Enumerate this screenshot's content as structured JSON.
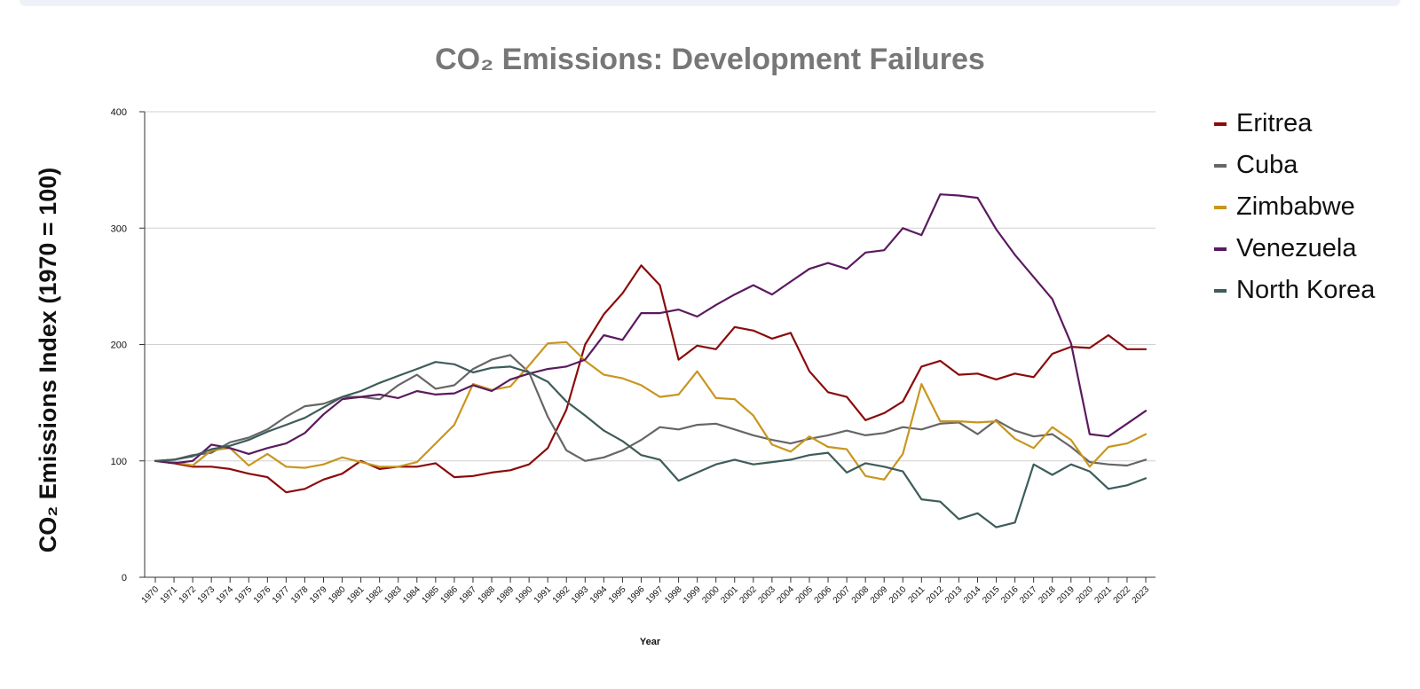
{
  "chart_data": {
    "type": "line",
    "title": "CO₂ Emissions: Development Failures",
    "xlabel": "Year",
    "ylabel": "CO₂ Emissions Index (1970 = 100)",
    "ylim": [
      0,
      400
    ],
    "yticks": [
      "0",
      "100",
      "200",
      "300",
      "400"
    ],
    "grid": true,
    "legend_position": "right",
    "x": [
      "1970",
      "1971",
      "1972",
      "1973",
      "1974",
      "1975",
      "1976",
      "1977",
      "1978",
      "1979",
      "1980",
      "1981",
      "1982",
      "1983",
      "1984",
      "1985",
      "1986",
      "1987",
      "1988",
      "1989",
      "1990",
      "1991",
      "1992",
      "1993",
      "1994",
      "1995",
      "1996",
      "1997",
      "1998",
      "1999",
      "2000",
      "2001",
      "2002",
      "2003",
      "2004",
      "2005",
      "2006",
      "2007",
      "2008",
      "2009",
      "2010",
      "2011",
      "2012",
      "2013",
      "2014",
      "2015",
      "2016",
      "2017",
      "2018",
      "2019",
      "2020",
      "2021",
      "2022",
      "2023"
    ],
    "series": [
      {
        "name": "Eritrea",
        "color": "#8b0a0a",
        "values": [
          100,
          98,
          95,
          95,
          93,
          89,
          86,
          73,
          76,
          84,
          89,
          100,
          93,
          95,
          95,
          98,
          86,
          87,
          90,
          92,
          97,
          111,
          144,
          200,
          226,
          244,
          268,
          251,
          187,
          199,
          196,
          215,
          212,
          205,
          210,
          177,
          159,
          155,
          135,
          141,
          151,
          181,
          186,
          174,
          175,
          170,
          175,
          172,
          192,
          198,
          197,
          208,
          196,
          196
        ]
      },
      {
        "name": "Cuba",
        "color": "#666666",
        "values": [
          100,
          101,
          105,
          107,
          116,
          120,
          127,
          138,
          147,
          149,
          155,
          155,
          153,
          165,
          174,
          162,
          165,
          179,
          187,
          191,
          176,
          138,
          109,
          100,
          103,
          109,
          118,
          129,
          127,
          131,
          132,
          127,
          122,
          118,
          115,
          119,
          122,
          126,
          122,
          124,
          129,
          127,
          132,
          133,
          123,
          135,
          126,
          121,
          123,
          112,
          99,
          97,
          96,
          101
        ]
      },
      {
        "name": "Zimbabwe",
        "color": "#c8961e",
        "values": [
          100,
          99,
          96,
          109,
          111,
          96,
          106,
          95,
          94,
          97,
          103,
          99,
          95,
          95,
          99,
          115,
          131,
          166,
          161,
          164,
          182,
          201,
          202,
          186,
          174,
          171,
          165,
          155,
          157,
          177,
          154,
          153,
          139,
          114,
          108,
          121,
          112,
          110,
          87,
          84,
          106,
          166,
          134,
          134,
          133,
          134,
          119,
          111,
          129,
          118,
          95,
          112,
          115,
          123
        ]
      },
      {
        "name": "Venezuela",
        "color": "#5a1a5e",
        "values": [
          100,
          98,
          100,
          114,
          111,
          106,
          111,
          115,
          124,
          140,
          153,
          155,
          157,
          154,
          160,
          157,
          158,
          165,
          160,
          170,
          175,
          179,
          181,
          187,
          208,
          204,
          227,
          227,
          230,
          224,
          234,
          243,
          251,
          243,
          254,
          265,
          270,
          265,
          279,
          281,
          300,
          294,
          329,
          328,
          326,
          299,
          277,
          258,
          239,
          201,
          123,
          121,
          132,
          143
        ]
      },
      {
        "name": "North Korea",
        "color": "#3d5c5a",
        "values": [
          100,
          101,
          104,
          110,
          113,
          118,
          125,
          131,
          137,
          146,
          155,
          160,
          167,
          173,
          179,
          185,
          183,
          176,
          180,
          181,
          176,
          168,
          151,
          139,
          126,
          117,
          105,
          101,
          83,
          90,
          97,
          101,
          97,
          99,
          101,
          105,
          107,
          90,
          98,
          95,
          91,
          67,
          65,
          50,
          55,
          43,
          47,
          97,
          88,
          97,
          91,
          76,
          79,
          85
        ]
      }
    ]
  }
}
